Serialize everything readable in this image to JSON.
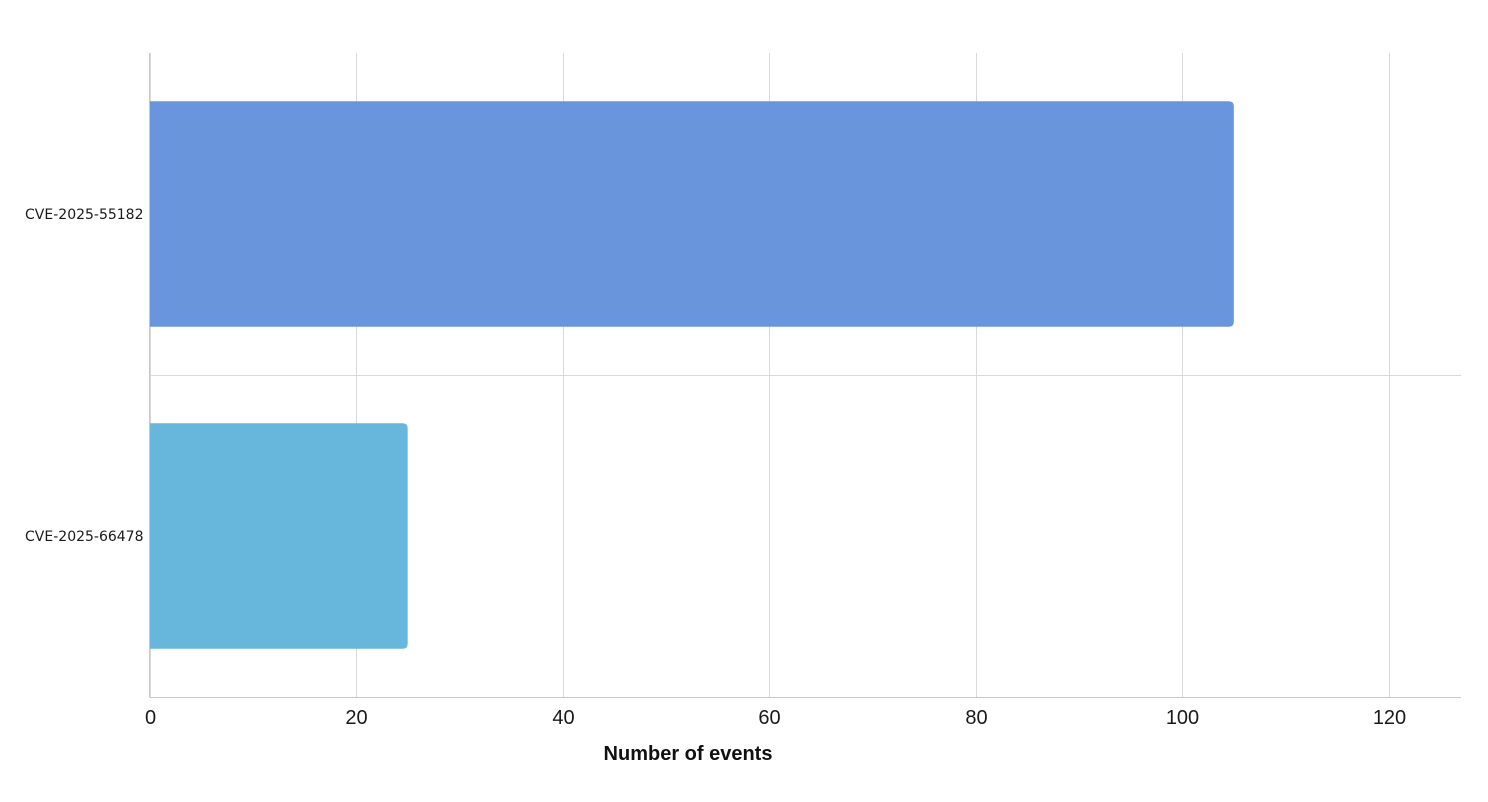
{
  "chart_data": {
    "type": "bar",
    "orientation": "horizontal",
    "categories": [
      "CVE-2025-55182",
      "CVE-2025-66478"
    ],
    "values": [
      105,
      25
    ],
    "colors": [
      "#6895dc",
      "#67b6db"
    ],
    "xlabel": "Number of events",
    "ylabel": "",
    "xlim": [
      0,
      127
    ],
    "xticks": [
      0,
      20,
      40,
      60,
      80,
      100,
      120
    ],
    "grid": true
  }
}
